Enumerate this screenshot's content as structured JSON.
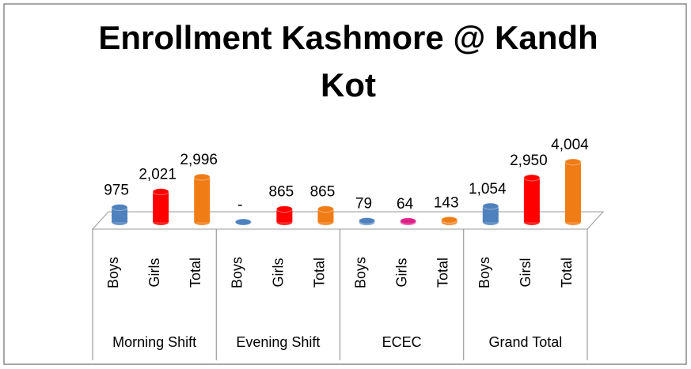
{
  "chart_data": {
    "type": "bar",
    "title_lines": [
      "Enrollment Kashmore @ Kandh",
      "Kot"
    ],
    "categories": [
      "Boys",
      "Girls",
      "Total",
      "Boys",
      "Girls",
      "Total",
      "Boys",
      "Girls",
      "Total",
      "Boys",
      "Girsl",
      "Total"
    ],
    "groups": [
      "Morning Shift",
      "Evening Shift",
      "ECEC",
      "Grand Total"
    ],
    "values": [
      975,
      2021,
      2996,
      0,
      865,
      865,
      79,
      64,
      143,
      1054,
      2950,
      4004
    ],
    "value_labels": [
      "975",
      "2,021",
      "2,996",
      "-",
      "865",
      "865",
      "79",
      "64",
      "143",
      "1,054",
      "2,950",
      "4,004"
    ],
    "colors": [
      "#4f81bd",
      "#ff0000",
      "#f07c16",
      "#4f81bd",
      "#ff0000",
      "#f07c16",
      "#4f81bd",
      "#e0218a",
      "#f07c16",
      "#4f81bd",
      "#ff0000",
      "#f07c16"
    ]
  }
}
